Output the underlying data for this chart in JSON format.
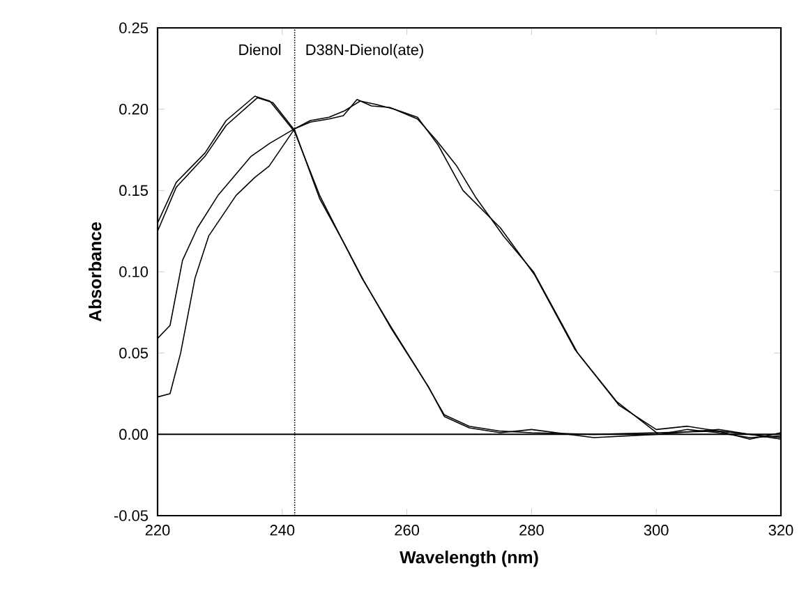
{
  "chart_data": {
    "type": "line",
    "xlabel": "Wavelength (nm)",
    "ylabel": "Absorbance",
    "xlim": [
      220,
      320
    ],
    "ylim": [
      -0.05,
      0.25
    ],
    "xticks": [
      220,
      240,
      260,
      280,
      300,
      320
    ],
    "yticks": [
      {
        "value": -0.05,
        "label": "-0.05"
      },
      {
        "value": 0,
        "label": "0.00"
      },
      {
        "value": 0.05,
        "label": "0.05"
      },
      {
        "value": 0.1,
        "label": "0.10"
      },
      {
        "value": 0.15,
        "label": "0.15"
      },
      {
        "value": 0.2,
        "label": "0.20"
      },
      {
        "value": 0.25,
        "label": "0.25"
      }
    ],
    "grid": false,
    "marker": "none",
    "line_style": "solid",
    "ref_lines": [
      {
        "axis": "y",
        "value": 0,
        "color": "#000000",
        "line_style": "solid"
      },
      {
        "axis": "x",
        "value": 242,
        "color": "#000000",
        "line_style": "dotted"
      }
    ],
    "annotations": [
      "Dienol",
      "D38N-Dienol(ate)"
    ],
    "series": [
      {
        "color": "#000000",
        "x": [
          220,
          223,
          227.6,
          231,
          235.6,
          238,
          242,
          246,
          249.7,
          252.8,
          257.3,
          261.7,
          263.3,
          266,
          270,
          275,
          280,
          290,
          300,
          310,
          320
        ],
        "values": [
          0.13,
          0.155,
          0.173,
          0.193,
          0.208,
          0.205,
          0.186,
          0.147,
          0.119,
          0.096,
          0.067,
          0.04,
          0.03,
          0.012,
          0.005,
          0.002,
          0.001,
          0,
          0.001,
          0.002,
          -0.002
        ]
      },
      {
        "color": "#000000",
        "x": [
          220,
          223,
          227.6,
          231,
          236,
          238.5,
          242,
          246,
          250,
          253,
          257.5,
          262,
          263.5,
          266,
          270,
          275,
          280,
          290,
          300,
          310,
          320
        ],
        "values": [
          0.125,
          0.152,
          0.171,
          0.19,
          0.207,
          0.204,
          0.187,
          0.145,
          0.117,
          0.095,
          0.065,
          0.038,
          0.029,
          0.011,
          0.004,
          0.001,
          0.003,
          -0.002,
          0,
          0.003,
          -0.003
        ]
      },
      {
        "color": "#000000",
        "x": [
          220,
          222,
          224,
          226.4,
          229.7,
          235,
          238,
          242,
          244.5,
          247.5,
          249.8,
          252,
          254.3,
          257.3,
          261.7,
          264.7,
          268,
          271,
          275.5,
          280.3,
          287.4,
          293.7,
          300.4,
          305,
          310,
          315,
          320
        ],
        "values": [
          0.059,
          0.067,
          0.107,
          0.127,
          0.147,
          0.171,
          0.179,
          0.188,
          0.192,
          0.194,
          0.196,
          0.206,
          0.202,
          0.201,
          0.194,
          0.181,
          0.165,
          0.146,
          0.122,
          0.1,
          0.05,
          0.02,
          0,
          0.003,
          0.001,
          -0.002,
          -0.001
        ]
      },
      {
        "color": "#000000",
        "x": [
          220,
          222,
          223.7,
          226,
          228.2,
          232.6,
          235.6,
          237.9,
          242,
          244.5,
          247.5,
          250,
          252.5,
          255,
          258,
          261.7,
          265,
          269,
          275,
          280.5,
          287,
          294,
          300,
          305,
          310,
          315,
          320
        ],
        "values": [
          0.023,
          0.025,
          0.05,
          0.096,
          0.122,
          0.147,
          0.158,
          0.165,
          0.188,
          0.193,
          0.195,
          0.199,
          0.205,
          0.203,
          0.2,
          0.195,
          0.178,
          0.15,
          0.127,
          0.098,
          0.052,
          0.018,
          0.003,
          0.005,
          0.002,
          -0.003,
          0.001
        ]
      }
    ]
  }
}
